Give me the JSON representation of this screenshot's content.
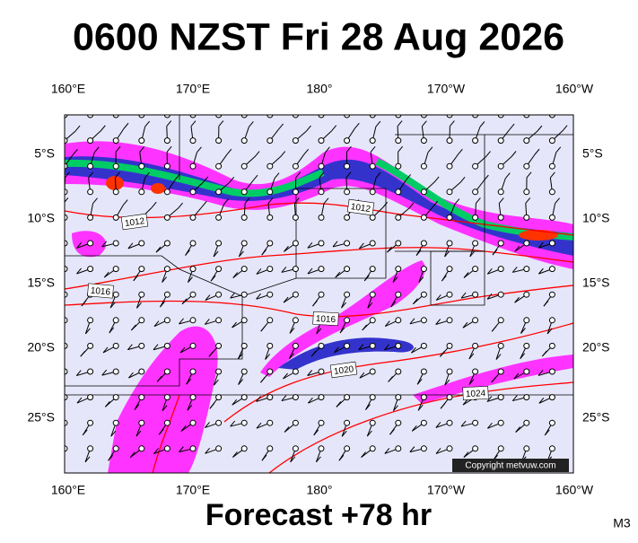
{
  "title": "0600 NZST Fri 28 Aug 2026",
  "lon_labels_top": [
    "160°E",
    "170°E",
    "180°",
    "170°W",
    "160°W"
  ],
  "lon_labels_bottom": [
    "160°E",
    "170°E",
    "180°",
    "170°W",
    "160°W"
  ],
  "lat_labels_left": [
    "5°S",
    "10°S",
    "15°S",
    "20°S",
    "25°S"
  ],
  "lat_labels_right": [
    "5°S",
    "10°S",
    "15°S",
    "20°S",
    "25°S"
  ],
  "isobar_labels": [
    "1012",
    "1012",
    "1016",
    "1016",
    "1020",
    "1024"
  ],
  "copyright": "Copyright metvuw.com",
  "footer": "Forecast +78 hr",
  "code": "M3"
}
